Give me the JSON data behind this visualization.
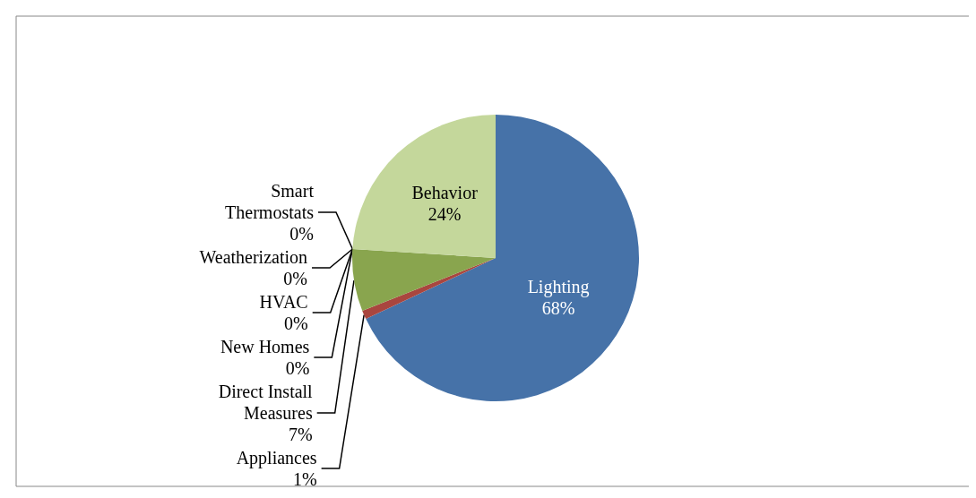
{
  "chart_data": {
    "type": "pie",
    "categories": [
      "Lighting",
      "Appliances",
      "Direct Install\nMeasures",
      "Weatherization",
      "HVAC",
      "Smart\nThermostats",
      "New Homes",
      "Behavior"
    ],
    "values": [
      68,
      1,
      7,
      0,
      0,
      0,
      0,
      24
    ],
    "value_labels": [
      "68%",
      "1%",
      "7%",
      "0%",
      "0%",
      "0%",
      "0%",
      "24%"
    ],
    "colors": [
      "#4672a8",
      "#a9463f",
      "#89a54e",
      "#71588f",
      "#4198af",
      "#db843d",
      "#93a9cf",
      "#c4d79b"
    ]
  }
}
